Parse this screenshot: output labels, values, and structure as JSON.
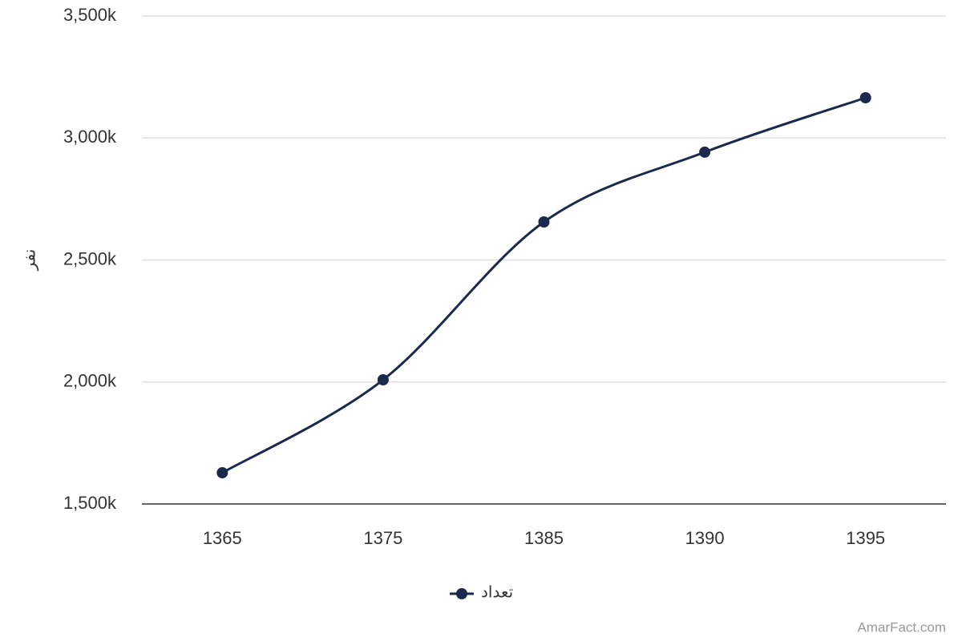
{
  "chart_data": {
    "type": "line",
    "categories": [
      "1365",
      "1375",
      "1385",
      "1390",
      "1395"
    ],
    "series": [
      {
        "name": "تعداد",
        "color": "#1b2a4c",
        "values": [
          1628000,
          2009000,
          2656000,
          2942000,
          3165000
        ]
      }
    ],
    "y_label": "نفر",
    "ylim": [
      1500000,
      3500000
    ],
    "yticks": [
      {
        "value": 1500000,
        "label": "1,500k"
      },
      {
        "value": 2000000,
        "label": "2,000k"
      },
      {
        "value": 2500000,
        "label": "2,500k"
      },
      {
        "value": 3000000,
        "label": "3,000k"
      },
      {
        "value": 3500000,
        "label": "3,500k"
      }
    ],
    "grid": true,
    "credit": "AmarFact.com"
  }
}
